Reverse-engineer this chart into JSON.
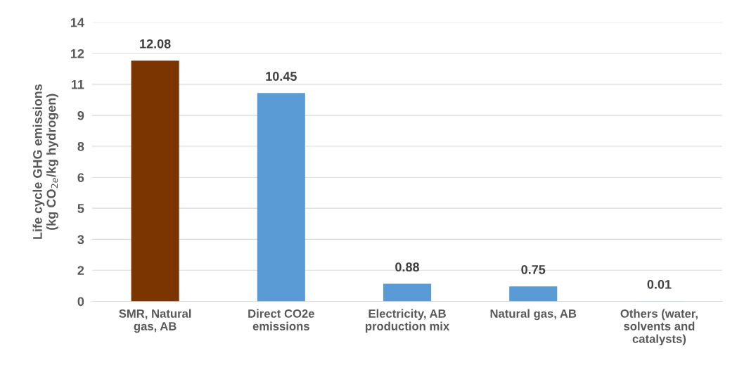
{
  "chart_data": {
    "type": "bar",
    "ylabel": "Life cycle GHG emissions\n(kg CO$_{2e}$/kg hydrogen)",
    "categories": [
      "SMR, Natural\ngas, AB",
      "Direct CO2e\nemissions",
      "Electricity, AB\nproduction mix",
      "Natural gas, AB",
      "Others (water,\nsolvents and\ncatalysts)"
    ],
    "values": [
      12.08,
      10.45,
      0.88,
      0.75,
      0.01
    ],
    "colors": [
      "#7b3500",
      "#5b9bd5",
      "#5b9bd5",
      "#5b9bd5",
      "#5b9bd5"
    ],
    "data_labels": true,
    "ylim": [
      0,
      14
    ],
    "yticks": [
      0,
      {
        "value": 1.56,
        "label": "2"
      },
      {
        "value": 3.11,
        "label": "3"
      },
      {
        "value": 4.67,
        "label": "5"
      },
      {
        "value": 6.22,
        "label": "6"
      },
      {
        "value": 7.78,
        "label": "8"
      },
      {
        "value": 9.33,
        "label": "9"
      },
      {
        "value": 10.89,
        "label": "11"
      },
      {
        "value": 12.44,
        "label": "12"
      },
      14
    ],
    "grid": "y"
  }
}
